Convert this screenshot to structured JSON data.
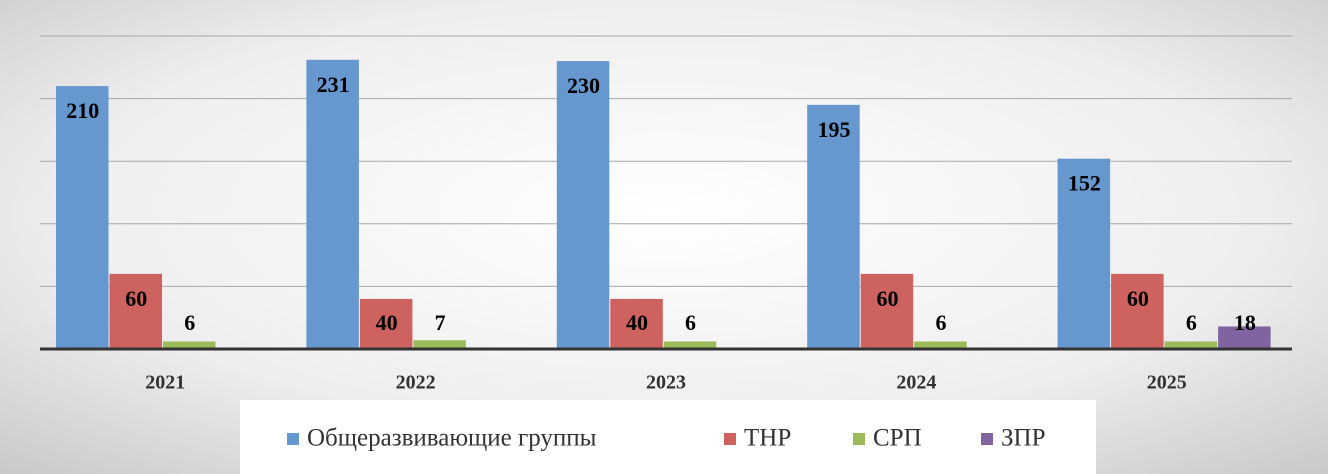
{
  "chart_data": {
    "type": "bar",
    "categories": [
      "2021",
      "2022",
      "2023",
      "2024",
      "2025"
    ],
    "series": [
      {
        "name": "Общеразвивающие группы",
        "color": "#6797cf",
        "values": [
          210,
          231,
          230,
          195,
          152
        ]
      },
      {
        "name": "ТНР",
        "color": "#cd625e",
        "values": [
          60,
          40,
          40,
          60,
          60
        ]
      },
      {
        "name": "СРП",
        "color": "#9bbb59",
        "values": [
          6,
          7,
          6,
          6,
          6
        ]
      },
      {
        "name": "ЗПР",
        "color": "#8064a2",
        "values": [
          null,
          null,
          null,
          null,
          18
        ]
      }
    ],
    "ylim": [
      0,
      250
    ],
    "yticks": [
      0,
      50,
      100,
      150,
      200,
      250
    ],
    "grid": true,
    "legend": "bottom"
  }
}
